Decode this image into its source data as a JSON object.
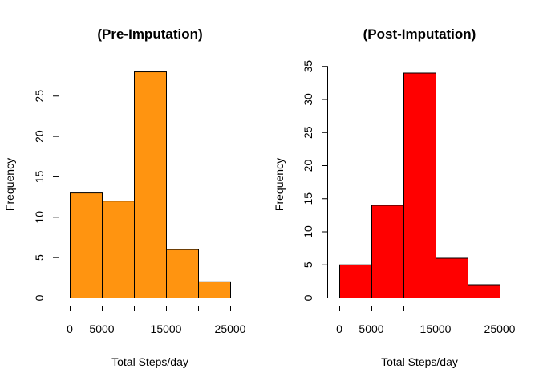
{
  "chart_data": [
    {
      "type": "bar",
      "title": "(Pre-Imputation)",
      "xlabel": "Total Steps/day",
      "ylabel": "Frequency",
      "bin_edges": [
        0,
        5000,
        10000,
        15000,
        20000,
        25000
      ],
      "values": [
        13,
        12,
        28,
        6,
        2
      ],
      "color": "#FF9410",
      "xticks": [
        0,
        5000,
        15000,
        25000
      ],
      "yticks": [
        0,
        5,
        10,
        15,
        20,
        25
      ],
      "ylim": [
        0,
        28
      ]
    },
    {
      "type": "bar",
      "title": "(Post-Imputation)",
      "xlabel": "Total Steps/day",
      "ylabel": "Frequency",
      "bin_edges": [
        0,
        5000,
        10000,
        15000,
        20000,
        25000
      ],
      "values": [
        5,
        14,
        34,
        6,
        2
      ],
      "color": "#FF0000",
      "xticks": [
        0,
        5000,
        15000,
        25000
      ],
      "yticks": [
        0,
        5,
        10,
        15,
        20,
        25,
        30,
        35
      ],
      "ylim": [
        0,
        35
      ]
    }
  ]
}
